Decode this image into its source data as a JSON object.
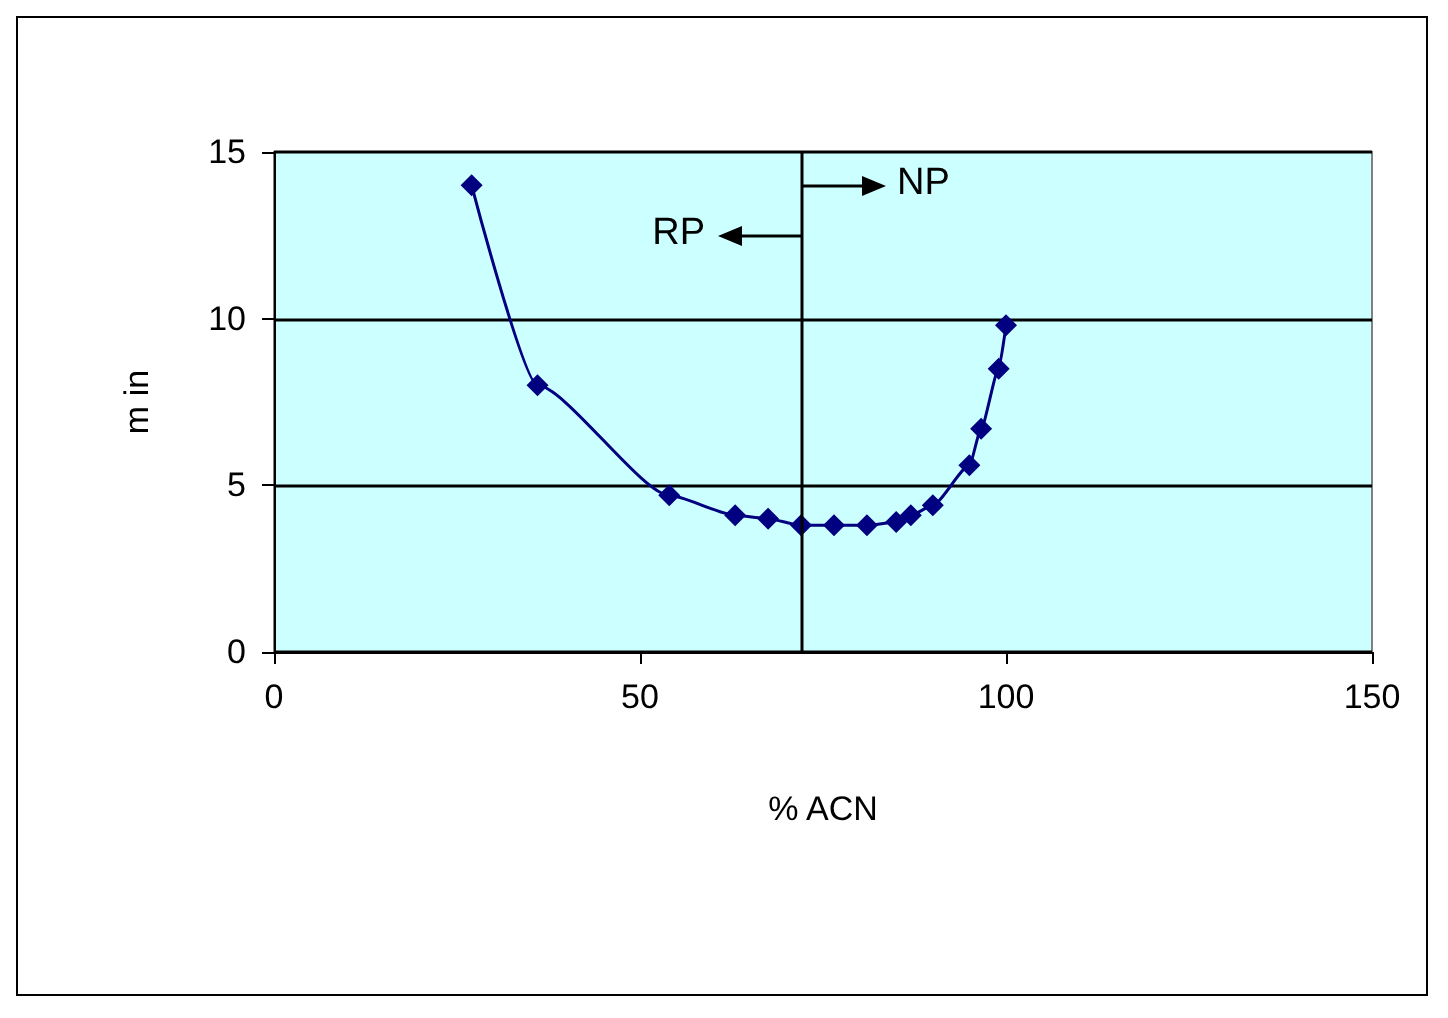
{
  "chart_data": {
    "type": "line",
    "xlabel": "% ACN",
    "ylabel": "m in",
    "x": [
      27,
      36,
      54,
      63,
      67.5,
      72,
      76.5,
      81,
      85,
      87,
      90,
      95,
      96.6,
      99,
      100
    ],
    "series": [
      {
        "color": "#000080",
        "values": [
          14,
          8,
          4.7,
          4.1,
          4,
          3.8,
          3.8,
          3.8,
          3.9,
          4.1,
          4.4,
          5.6,
          6.7,
          8.5,
          9.8
        ]
      }
    ],
    "xlim": [
      0,
      150
    ],
    "xticks": [
      0,
      50,
      100,
      150
    ],
    "ylim": [
      0,
      15
    ],
    "yticks": [
      0,
      5,
      10,
      15
    ],
    "grid": "y",
    "marker": "diamond",
    "line_style": "solid",
    "ref_lines": [
      {
        "axis": "x",
        "value": 72,
        "color": "#000000"
      }
    ],
    "annotations": [
      {
        "text": "RP",
        "x": 72,
        "y": 12.5
      },
      {
        "text": "NP",
        "x": 72,
        "y": 14
      }
    ]
  }
}
